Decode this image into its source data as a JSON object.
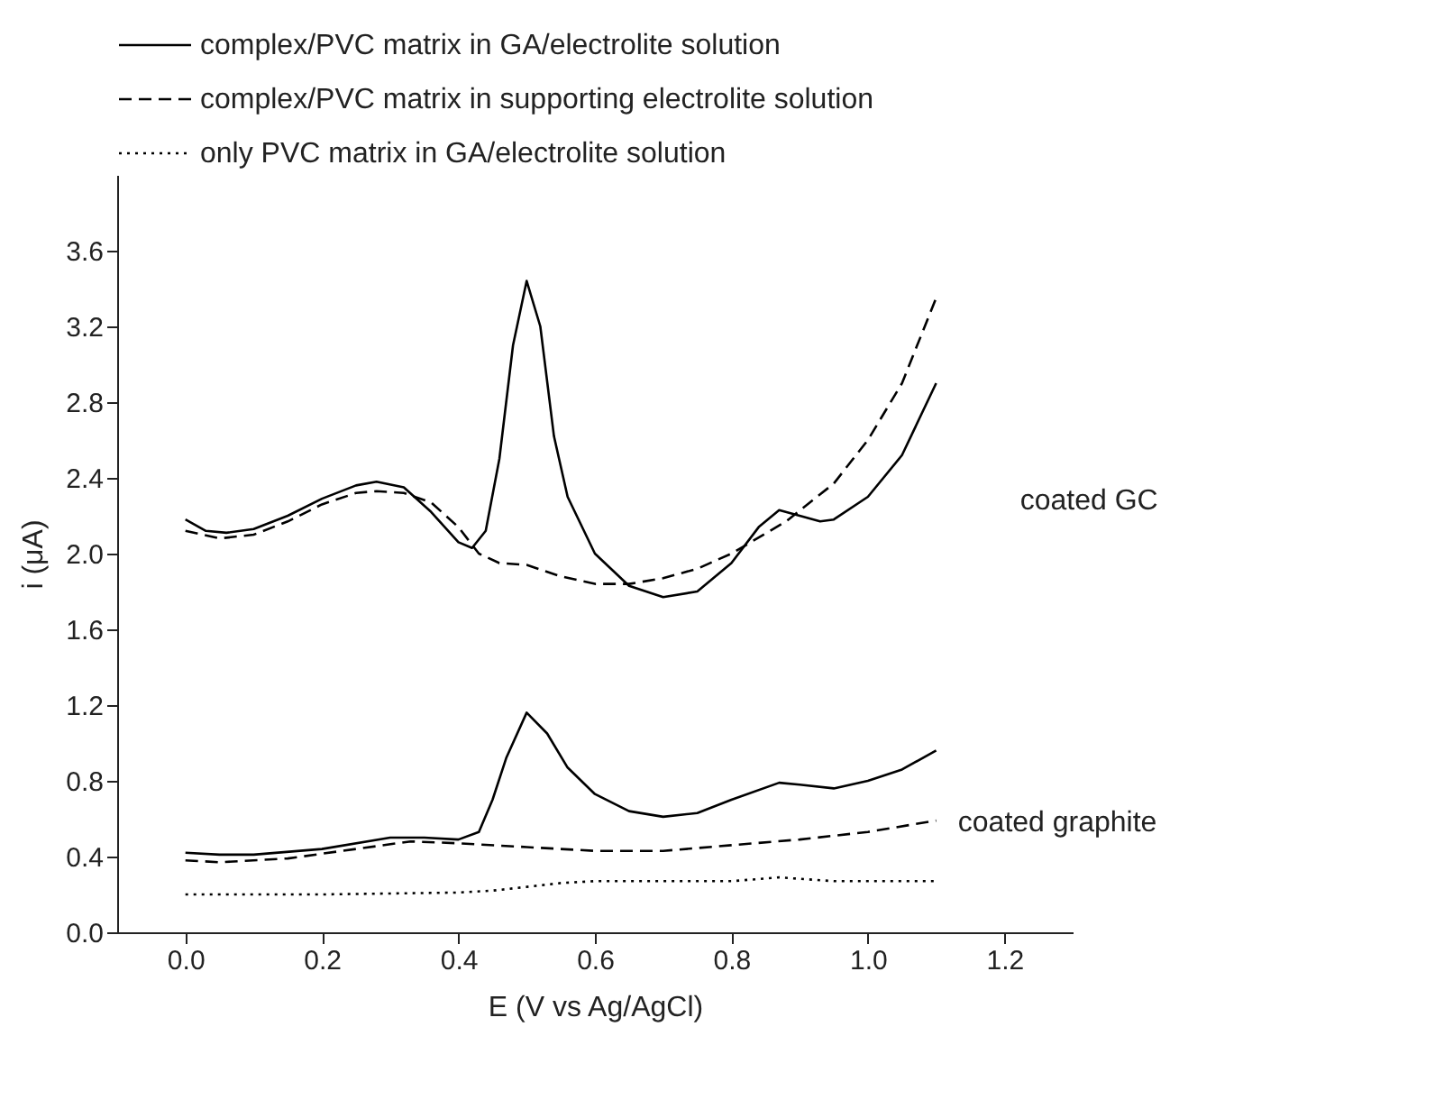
{
  "chart_data": {
    "type": "line",
    "xlabel": "E (V vs Ag/AgCl)",
    "ylabel": "i (μA)",
    "xlim": [
      -0.1,
      1.3
    ],
    "ylim": [
      0,
      4.0
    ],
    "xticks": [
      {
        "value": 0,
        "label": "0.0"
      },
      0.2,
      0.4,
      0.6,
      0.8,
      {
        "value": 1,
        "label": "1.0"
      },
      1.2
    ],
    "yticks": [
      {
        "value": 0,
        "label": "0.0"
      },
      0.4,
      0.8,
      1.2,
      1.6,
      {
        "value": 2,
        "label": "2.0"
      },
      2.4,
      2.8,
      3.2,
      3.6
    ],
    "legend": "top",
    "series": [
      {
        "name": "complex/PVC matrix in GA/electrolite solution",
        "color": "#000000",
        "line_style": "solid",
        "x": [
          0,
          0.03,
          0.06,
          0.1,
          0.15,
          0.2,
          0.25,
          0.28,
          0.32,
          0.36,
          0.4,
          0.42,
          0.44,
          0.46,
          0.48,
          0.5,
          0.52,
          0.54,
          0.56,
          0.6,
          0.65,
          0.7,
          0.75,
          0.8,
          0.84,
          0.87,
          0.9,
          0.93,
          0.95,
          1.0,
          1.05,
          1.1
        ],
        "values": [
          2.18,
          2.12,
          2.11,
          2.13,
          2.2,
          2.29,
          2.36,
          2.38,
          2.35,
          2.22,
          2.06,
          2.03,
          2.12,
          2.5,
          3.1,
          3.44,
          3.2,
          2.62,
          2.3,
          2.0,
          1.83,
          1.77,
          1.8,
          1.95,
          2.14,
          2.23,
          2.2,
          2.17,
          2.18,
          2.3,
          2.52,
          2.9
        ]
      },
      {
        "name": "complex/PVC matrix in supporting electrolite solution",
        "color": "#000000",
        "line_style": "dashed",
        "x": [
          0,
          0.05,
          0.1,
          0.15,
          0.2,
          0.25,
          0.28,
          0.32,
          0.36,
          0.4,
          0.43,
          0.46,
          0.5,
          0.55,
          0.6,
          0.65,
          0.7,
          0.75,
          0.8,
          0.88,
          0.95,
          1.0,
          1.05,
          1.1
        ],
        "values": [
          2.12,
          2.08,
          2.1,
          2.17,
          2.26,
          2.32,
          2.33,
          2.32,
          2.27,
          2.14,
          2.0,
          1.95,
          1.94,
          1.88,
          1.84,
          1.84,
          1.87,
          1.92,
          2.0,
          2.17,
          2.37,
          2.6,
          2.9,
          3.35
        ]
      },
      {
        "name": "only PVC matrix in GA/electrolite solution",
        "color": "#000000",
        "line_style": "dotted",
        "x": [
          0,
          0.2,
          0.4,
          0.45,
          0.5,
          0.55,
          0.6,
          0.7,
          0.8,
          0.87,
          0.95,
          1.1
        ],
        "values": [
          0.2,
          0.2,
          0.21,
          0.22,
          0.24,
          0.26,
          0.27,
          0.27,
          0.27,
          0.29,
          0.27,
          0.27
        ]
      },
      {
        "color": "#000000",
        "line_style": "solid",
        "x": [
          0,
          0.05,
          0.1,
          0.2,
          0.3,
          0.35,
          0.4,
          0.43,
          0.45,
          0.47,
          0.5,
          0.53,
          0.56,
          0.6,
          0.65,
          0.7,
          0.75,
          0.8,
          0.87,
          0.9,
          0.95,
          1.0,
          1.05,
          1.1
        ],
        "values": [
          0.42,
          0.41,
          0.41,
          0.44,
          0.5,
          0.5,
          0.49,
          0.53,
          0.7,
          0.92,
          1.16,
          1.05,
          0.87,
          0.73,
          0.64,
          0.61,
          0.63,
          0.7,
          0.79,
          0.78,
          0.76,
          0.8,
          0.86,
          0.96
        ]
      },
      {
        "color": "#000000",
        "line_style": "dashed",
        "x": [
          0,
          0.05,
          0.15,
          0.25,
          0.33,
          0.4,
          0.5,
          0.6,
          0.7,
          0.8,
          0.9,
          1.0,
          1.1
        ],
        "values": [
          0.38,
          0.37,
          0.39,
          0.44,
          0.48,
          0.47,
          0.45,
          0.43,
          0.43,
          0.46,
          0.49,
          0.53,
          0.59
        ]
      }
    ],
    "annotations": [
      "coated GC",
      "coated graphite"
    ]
  }
}
